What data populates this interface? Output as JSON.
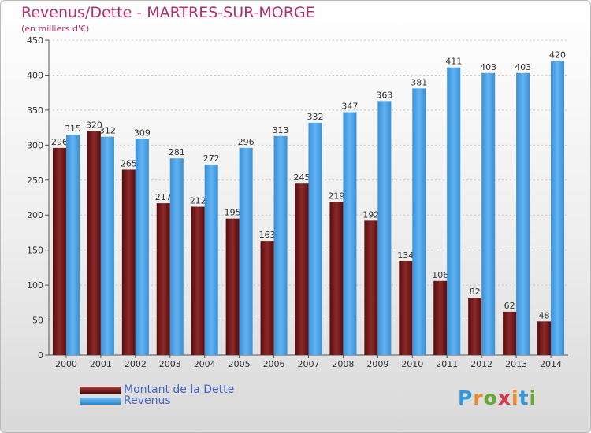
{
  "chart_data": {
    "type": "bar",
    "title": "Revenus/Dette - MARTRES-SUR-MORGE",
    "subtitle": "(en milliers d'€)",
    "categories": [
      "2000",
      "2001",
      "2002",
      "2003",
      "2004",
      "2005",
      "2006",
      "2007",
      "2008",
      "2009",
      "2010",
      "2011",
      "2012",
      "2013",
      "2014"
    ],
    "series": [
      {
        "name": "Montant de la Dette",
        "color": "#7a1a1a",
        "values": [
          296,
          320,
          265,
          217,
          212,
          195,
          163,
          245,
          219,
          192,
          134,
          106,
          82,
          62,
          48
        ]
      },
      {
        "name": "Revenus",
        "color": "#4aa0e0",
        "values": [
          315,
          312,
          309,
          281,
          272,
          296,
          313,
          332,
          347,
          363,
          381,
          411,
          403,
          403,
          420
        ]
      }
    ],
    "ylim": [
      0,
      450
    ],
    "yticks": [
      0,
      50,
      100,
      150,
      200,
      250,
      300,
      350,
      400,
      450
    ],
    "grid": true,
    "legend": "bottom-left",
    "xlabel": "",
    "ylabel": ""
  },
  "logo": {
    "letters": [
      "P",
      "r",
      "o",
      "x",
      "i",
      "t",
      "i"
    ],
    "colors": [
      "#3399dd",
      "#ee8822",
      "#66aa33",
      "#dd3344",
      "#ee8822",
      "#3399dd",
      "#66aa33"
    ]
  }
}
